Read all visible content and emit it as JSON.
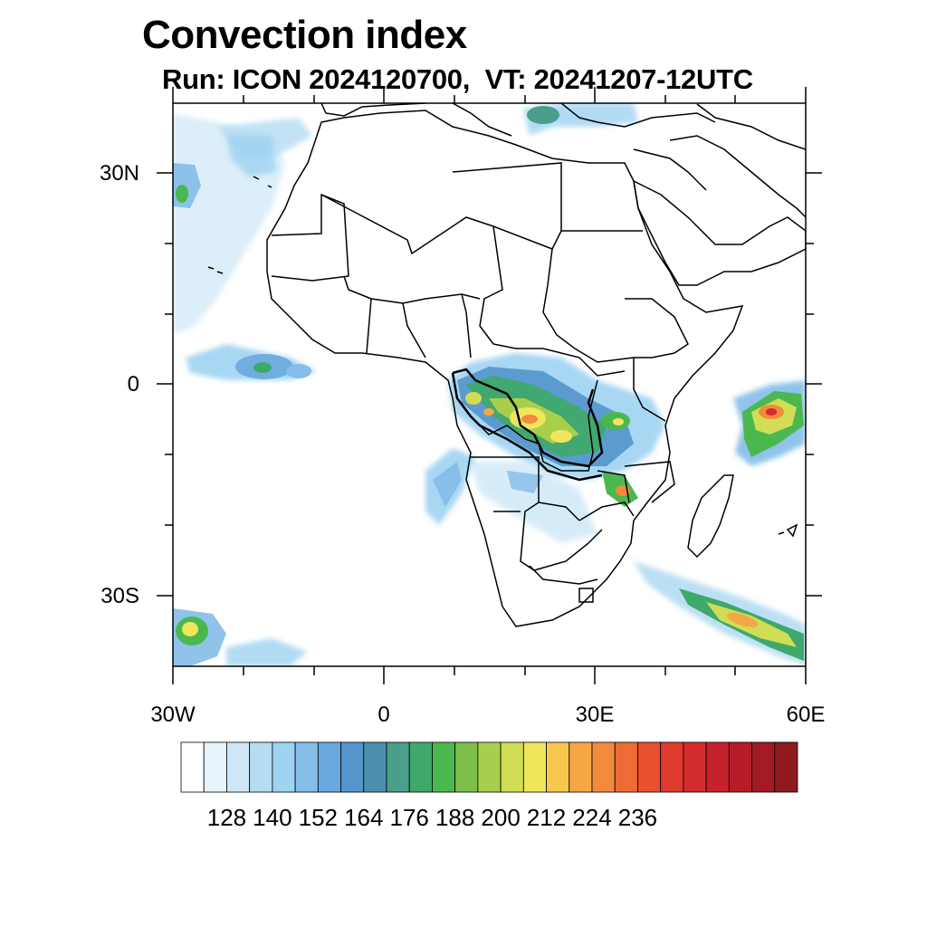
{
  "header": {
    "title": "Convection index",
    "subtitle": "Run: ICON 2024120700,  VT: 20241207-12UTC"
  },
  "axes": {
    "lat_labels": [
      "30N",
      "0",
      "30S"
    ],
    "lon_labels": [
      "30W",
      "0",
      "30E",
      "60E"
    ]
  },
  "colorbar": {
    "labels": [
      "128",
      "140",
      "152",
      "164",
      "176",
      "188",
      "200",
      "212",
      "224",
      "236"
    ],
    "colors": [
      "#ffffff",
      "#e8f4fb",
      "#cde7f7",
      "#b4dcf3",
      "#9ed3f1",
      "#83bde8",
      "#6aa9df",
      "#5495cc",
      "#4c8fad",
      "#4a9e8a",
      "#3ea96a",
      "#4bb84f",
      "#7cbf4a",
      "#a8cf4c",
      "#d1dd55",
      "#efe65c",
      "#f8c74e",
      "#f6a745",
      "#f38a3d",
      "#ee6b34",
      "#e7512f",
      "#de3a2d",
      "#d42b2d",
      "#c7212c",
      "#b61c28",
      "#a31924",
      "#8f1a1e"
    ]
  }
}
